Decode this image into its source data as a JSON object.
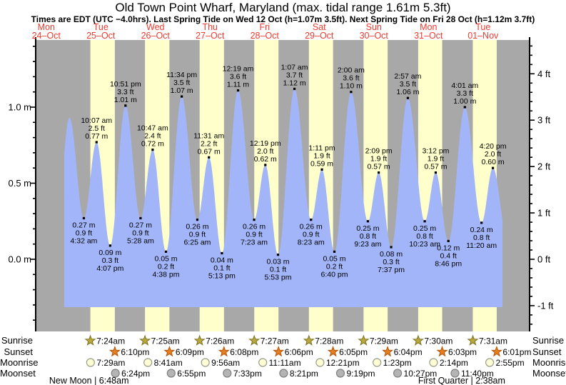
{
  "title": "Old Town Point Wharf, Maryland (max. tidal range 1.61m 5.3ft)",
  "subtitle": "Times are EDT (UTC −4.0hrs). Last Spring Tide on Wed 12 Oct (h=1.07m 3.5ft). Next Spring Tide on Fri 28 Oct (h=1.12m 3.7ft)",
  "colors": {
    "night_band": "#a8a8a8",
    "day_band": "#ffffcc",
    "tide_area": "#a3b5f9",
    "day_label": "#f13a30",
    "axis": "#000000",
    "sunrise_star_fill": "#b9a93c",
    "sunrise_star_stroke": "#7d7120",
    "sunset_star_fill": "#e6801f",
    "sunset_star_stroke": "#b35309",
    "moonrise_fill": "#ffffd6",
    "moonrise_stroke": "#9a9a8a",
    "moonset_fill": "#b4b4b4",
    "moonset_stroke": "#7f7f7f"
  },
  "chart_data": {
    "type": "area",
    "title": "Old Town Point Wharf, Maryland (max. tidal range 1.61m 5.3ft)",
    "ylabel_left": "meters",
    "ylabel_right": "feet",
    "y_ticks_left": [
      {
        "v": 0.0,
        "label": "0.0 m"
      },
      {
        "v": 0.5,
        "label": "0.5 m"
      },
      {
        "v": 1.0,
        "label": "1.0 m"
      }
    ],
    "y_ticks_right": [
      {
        "v": -1,
        "label": "-1 ft"
      },
      {
        "v": 0,
        "label": "0 ft"
      },
      {
        "v": 1,
        "label": "1 ft"
      },
      {
        "v": 2,
        "label": "2 ft"
      },
      {
        "v": 3,
        "label": "3 ft"
      },
      {
        "v": 4,
        "label": "4 ft"
      }
    ],
    "days": [
      {
        "dow": "Mon",
        "date": "24–Oct"
      },
      {
        "dow": "Tue",
        "date": "25–Oct"
      },
      {
        "dow": "Wed",
        "date": "26–Oct"
      },
      {
        "dow": "Thu",
        "date": "27–Oct"
      },
      {
        "dow": "Fri",
        "date": "28–Oct"
      },
      {
        "dow": "Sat",
        "date": "29–Oct"
      },
      {
        "dow": "Sun",
        "date": "30–Oct"
      },
      {
        "dow": "Mon",
        "date": "31–Oct"
      },
      {
        "dow": "Tue",
        "date": "01–Nov"
      }
    ],
    "tide_events": [
      {
        "day": 0,
        "h": 15.9,
        "type": "low",
        "m": 0.1,
        "labeled": false
      },
      {
        "day": 0,
        "h": 22.2,
        "type": "high",
        "m": 0.93,
        "labeled": false
      },
      {
        "day": 1,
        "time": "4:32 am",
        "type": "low",
        "m": 0.27,
        "ft": 0.9,
        "labeled": true
      },
      {
        "day": 1,
        "time": "10:07 am",
        "type": "high",
        "m": 0.77,
        "ft": 2.5,
        "labeled": true
      },
      {
        "day": 1,
        "time": "4:07 pm",
        "type": "low",
        "m": 0.09,
        "ft": 0.3,
        "labeled": true
      },
      {
        "day": 1,
        "time": "10:51 pm",
        "type": "high",
        "m": 1.01,
        "ft": 3.3,
        "labeled": true
      },
      {
        "day": 2,
        "time": "5:28 am",
        "type": "low",
        "m": 0.27,
        "ft": 0.9,
        "labeled": true
      },
      {
        "day": 2,
        "time": "10:47 am",
        "type": "high",
        "m": 0.72,
        "ft": 2.4,
        "labeled": true
      },
      {
        "day": 2,
        "time": "4:38 pm",
        "type": "low",
        "m": 0.05,
        "ft": 0.2,
        "labeled": true
      },
      {
        "day": 2,
        "time": "11:34 pm",
        "type": "high",
        "m": 1.07,
        "ft": 3.5,
        "labeled": true
      },
      {
        "day": 3,
        "time": "6:25 am",
        "type": "low",
        "m": 0.26,
        "ft": 0.9,
        "labeled": true
      },
      {
        "day": 3,
        "time": "11:31 am",
        "type": "high",
        "m": 0.67,
        "ft": 2.2,
        "labeled": true
      },
      {
        "day": 3,
        "time": "5:13 pm",
        "type": "low",
        "m": 0.04,
        "ft": 0.1,
        "labeled": true
      },
      {
        "day": 4,
        "time": "12:19 am",
        "type": "high",
        "m": 1.11,
        "ft": 3.6,
        "labeled": true
      },
      {
        "day": 4,
        "time": "7:23 am",
        "type": "low",
        "m": 0.26,
        "ft": 0.9,
        "labeled": true
      },
      {
        "day": 4,
        "time": "12:19 pm",
        "type": "high",
        "m": 0.62,
        "ft": 2.0,
        "labeled": true
      },
      {
        "day": 4,
        "time": "5:53 pm",
        "type": "low",
        "m": 0.03,
        "ft": 0.1,
        "labeled": true
      },
      {
        "day": 5,
        "time": "1:07 am",
        "type": "high",
        "m": 1.12,
        "ft": 3.7,
        "labeled": true
      },
      {
        "day": 5,
        "time": "8:23 am",
        "type": "low",
        "m": 0.26,
        "ft": 0.9,
        "labeled": true
      },
      {
        "day": 5,
        "time": "1:11 pm",
        "type": "high",
        "m": 0.59,
        "ft": 1.9,
        "labeled": true
      },
      {
        "day": 5,
        "time": "6:40 pm",
        "type": "low",
        "m": 0.05,
        "ft": 0.2,
        "labeled": true
      },
      {
        "day": 6,
        "time": "2:00 am",
        "type": "high",
        "m": 1.1,
        "ft": 3.6,
        "labeled": true
      },
      {
        "day": 6,
        "time": "9:23 am",
        "type": "low",
        "m": 0.25,
        "ft": 0.8,
        "labeled": true
      },
      {
        "day": 6,
        "time": "2:09 pm",
        "type": "high",
        "m": 0.57,
        "ft": 1.9,
        "labeled": true
      },
      {
        "day": 6,
        "time": "7:37 pm",
        "type": "low",
        "m": 0.08,
        "ft": 0.3,
        "labeled": true
      },
      {
        "day": 7,
        "time": "2:57 am",
        "type": "high",
        "m": 1.06,
        "ft": 3.5,
        "labeled": true
      },
      {
        "day": 7,
        "time": "10:23 am",
        "type": "low",
        "m": 0.25,
        "ft": 0.8,
        "labeled": true
      },
      {
        "day": 7,
        "time": "3:12 pm",
        "type": "high",
        "m": 0.57,
        "ft": 1.9,
        "labeled": true
      },
      {
        "day": 7,
        "time": "8:46 pm",
        "type": "low",
        "m": 0.12,
        "ft": 0.4,
        "labeled": true
      },
      {
        "day": 8,
        "time": "4:01 am",
        "type": "high",
        "m": 1.0,
        "ft": 3.3,
        "labeled": true
      },
      {
        "day": 8,
        "time": "11:20 am",
        "type": "low",
        "m": 0.24,
        "ft": 0.8,
        "labeled": true
      },
      {
        "day": 8,
        "time": "4:20 pm",
        "type": "high",
        "m": 0.6,
        "ft": 2.0,
        "labeled": true
      },
      {
        "day": 8,
        "h": 22.6,
        "type": "low",
        "m": 0.15,
        "labeled": false
      }
    ]
  },
  "sun_moon": {
    "rows": [
      {
        "id": "sunrise",
        "label": "Sunrise",
        "entries": [
          {
            "day": 1,
            "time": "7:24am"
          },
          {
            "day": 2,
            "time": "7:25am"
          },
          {
            "day": 3,
            "time": "7:26am"
          },
          {
            "day": 4,
            "time": "7:27am"
          },
          {
            "day": 5,
            "time": "7:28am"
          },
          {
            "day": 6,
            "time": "7:29am"
          },
          {
            "day": 7,
            "time": "7:30am"
          },
          {
            "day": 8,
            "time": "7:31am"
          }
        ]
      },
      {
        "id": "sunset",
        "label": "Sunset",
        "entries": [
          {
            "day": 1,
            "time": "6:10pm"
          },
          {
            "day": 2,
            "time": "6:09pm"
          },
          {
            "day": 3,
            "time": "6:08pm"
          },
          {
            "day": 4,
            "time": "6:06pm"
          },
          {
            "day": 5,
            "time": "6:05pm"
          },
          {
            "day": 6,
            "time": "6:04pm"
          },
          {
            "day": 7,
            "time": "6:03pm"
          },
          {
            "day": 8,
            "time": "6:01pm"
          }
        ]
      },
      {
        "id": "moonrise",
        "label": "Moonrise",
        "entries": [
          {
            "day": 1,
            "time": "7:29am"
          },
          {
            "day": 2,
            "time": "8:41am"
          },
          {
            "day": 3,
            "time": "9:56am"
          },
          {
            "day": 4,
            "time": "11:11am"
          },
          {
            "day": 5,
            "time": "12:21pm"
          },
          {
            "day": 6,
            "time": "1:23pm"
          },
          {
            "day": 7,
            "time": "2:14pm"
          },
          {
            "day": 8,
            "time": "2:55pm"
          }
        ]
      },
      {
        "id": "moonset",
        "label": "Moonset",
        "entries": [
          {
            "day": 1,
            "time": "6:24pm"
          },
          {
            "day": 2,
            "time": "6:55pm"
          },
          {
            "day": 3,
            "time": "7:33pm"
          },
          {
            "day": 4,
            "time": "8:21pm"
          },
          {
            "day": 5,
            "time": "9:19pm"
          },
          {
            "day": 6,
            "time": "10:27pm"
          },
          {
            "day": 7,
            "time": "11:40pm"
          }
        ]
      }
    ],
    "notes": [
      {
        "text": "New Moon | 6:48am",
        "day": 1,
        "time": "6:48am"
      },
      {
        "text": "First Quarter | 2:38am",
        "day": 8,
        "time": "2:38am"
      }
    ]
  }
}
